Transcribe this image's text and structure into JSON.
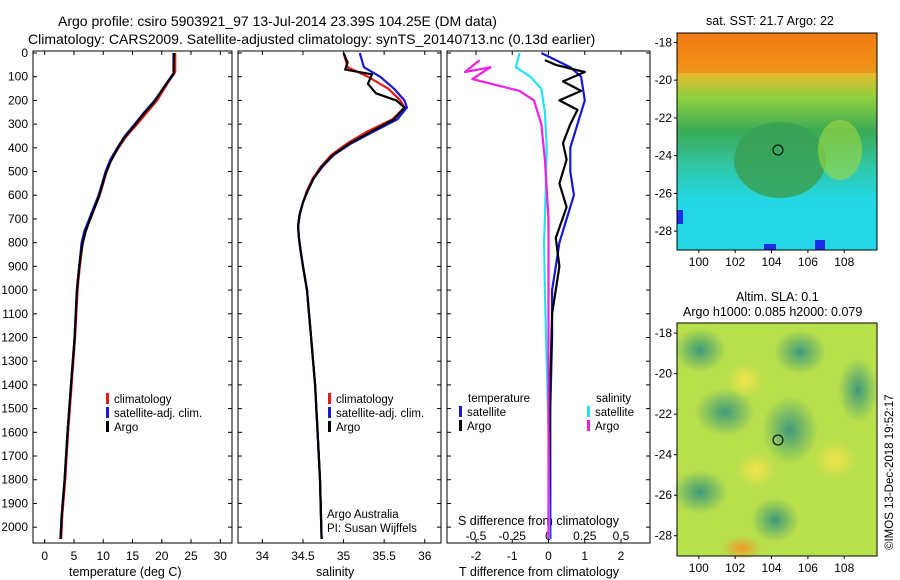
{
  "header": {
    "title_line1": "Argo profile: csiro 5903921_97 13-Jul-2014 23.39S 104.25E (DM data)",
    "title_line2": "Climatology: CARS2009. Satellite-adjusted climatology: synTS_20140713.nc (0.13d earlier)"
  },
  "colors": {
    "climatology": "#e8171a",
    "satellite": "#1717d8",
    "argo": "#000000",
    "sat_salinity": "#22e4f0",
    "argo_salinity_diff": "#f01ee8"
  },
  "depth_axis": {
    "ticks": [
      "0",
      "100",
      "200",
      "300",
      "400",
      "500",
      "600",
      "700",
      "800",
      "900",
      "1000",
      "1100",
      "1200",
      "1300",
      "1400",
      "1500",
      "1600",
      "1700",
      "1800",
      "1900",
      "2000"
    ],
    "ylim": [
      0,
      2050
    ]
  },
  "panels": {
    "temperature": {
      "xlabel": "temperature (deg C)",
      "xticks": [
        "0",
        "5",
        "10",
        "15",
        "20",
        "25",
        "30"
      ],
      "legend": [
        "climatology",
        "satellite-adj. clim.",
        "Argo"
      ]
    },
    "salinity": {
      "xlabel": "salinity",
      "xticks": [
        "34",
        "34.5",
        "35",
        "35.5",
        "36"
      ],
      "legend": [
        "climatology",
        "satellite-adj. clim.",
        "Argo"
      ],
      "credit_line1": "Argo Australia",
      "credit_line2": "PI: Susan Wijffels"
    },
    "difference": {
      "xlabel": "T difference from climatology",
      "xticks": [
        "-2",
        "-1",
        "0",
        "1",
        "2"
      ],
      "top_label": "S difference from climatology",
      "top_ticks": [
        "-0.5",
        "-0.25",
        "0",
        "0.25",
        "0.5"
      ],
      "legend_temperature_title": "temperature",
      "legend_salinity_title": "salinity",
      "legend_temperature": [
        "satellite",
        "Argo"
      ],
      "legend_salinity": [
        "satellite",
        "Argo"
      ]
    }
  },
  "maps": {
    "sst_title": "sat. SST: 21.7 Argo: 22",
    "sla_title_line1": "Altim. SLA: 0.1",
    "sla_title_line2": "Argo h1000: 0.085 h2000: 0.079",
    "lat_ticks": [
      "-18",
      "-20",
      "-22",
      "-24",
      "-26",
      "-28"
    ],
    "lon_ticks": [
      "100",
      "102",
      "104",
      "106",
      "108"
    ],
    "float_position": {
      "lon": 104.25,
      "lat": -23.39
    }
  },
  "footer": {
    "side_text": "©IMOS 13-Dec-2018 19:52:17"
  },
  "chart_data": [
    {
      "type": "line",
      "title": "",
      "xlabel": "temperature (deg C)",
      "ylabel": "",
      "xlim": [
        -2,
        32
      ],
      "ylim": [
        2050,
        0
      ],
      "series": [
        {
          "name": "climatology",
          "points": [
            [
              22.3,
              0
            ],
            [
              22.3,
              80
            ],
            [
              21.2,
              120
            ],
            [
              20.2,
              160
            ],
            [
              19.2,
              200
            ],
            [
              17.5,
              250
            ],
            [
              15.8,
              300
            ],
            [
              14,
              350
            ],
            [
              12.6,
              400
            ],
            [
              11.4,
              450
            ],
            [
              10.6,
              500
            ],
            [
              10,
              550
            ],
            [
              9.4,
              600
            ],
            [
              8.6,
              650
            ],
            [
              7.8,
              700
            ],
            [
              7.0,
              750
            ],
            [
              6.5,
              800
            ],
            [
              6.0,
              900
            ],
            [
              5.6,
              1000
            ],
            [
              5.2,
              1200
            ],
            [
              4.6,
              1400
            ],
            [
              4.0,
              1600
            ],
            [
              3.5,
              1800
            ],
            [
              3.0,
              1950
            ],
            [
              2.8,
              2050
            ]
          ]
        },
        {
          "name": "satellite-adj. clim.",
          "points": [
            [
              22.0,
              0
            ],
            [
              22.0,
              85
            ],
            [
              20.9,
              125
            ],
            [
              19.8,
              165
            ],
            [
              18.8,
              200
            ],
            [
              17.0,
              250
            ],
            [
              15.4,
              300
            ],
            [
              13.7,
              350
            ],
            [
              12.4,
              400
            ],
            [
              11.2,
              450
            ],
            [
              10.4,
              500
            ],
            [
              9.8,
              550
            ],
            [
              9.2,
              600
            ],
            [
              8.4,
              650
            ],
            [
              7.6,
              700
            ],
            [
              6.8,
              750
            ],
            [
              6.3,
              800
            ],
            [
              5.9,
              900
            ],
            [
              5.5,
              1000
            ],
            [
              5.1,
              1200
            ],
            [
              4.5,
              1400
            ],
            [
              3.9,
              1600
            ],
            [
              3.4,
              1800
            ],
            [
              2.9,
              1950
            ],
            [
              2.7,
              2050
            ]
          ]
        },
        {
          "name": "Argo",
          "points": [
            [
              22.1,
              0
            ],
            [
              22.0,
              90
            ],
            [
              20.8,
              130
            ],
            [
              19.7,
              170
            ],
            [
              18.6,
              210
            ],
            [
              16.8,
              260
            ],
            [
              15.2,
              310
            ],
            [
              13.5,
              360
            ],
            [
              12.3,
              410
            ],
            [
              11.2,
              460
            ],
            [
              10.4,
              510
            ],
            [
              9.8,
              560
            ],
            [
              9.2,
              610
            ],
            [
              8.4,
              660
            ],
            [
              7.6,
              710
            ],
            [
              6.9,
              760
            ],
            [
              6.4,
              810
            ],
            [
              5.9,
              900
            ],
            [
              5.5,
              1000
            ],
            [
              5.1,
              1200
            ],
            [
              4.5,
              1400
            ],
            [
              3.9,
              1600
            ],
            [
              3.4,
              1800
            ],
            [
              2.9,
              1950
            ],
            [
              2.7,
              2050
            ]
          ]
        }
      ]
    },
    {
      "type": "line",
      "title": "",
      "xlabel": "salinity",
      "ylabel": "",
      "xlim": [
        33.7,
        36.2
      ],
      "ylim": [
        2050,
        0
      ],
      "series": [
        {
          "name": "climatology",
          "points": [
            [
              35.0,
              0
            ],
            [
              35.05,
              60
            ],
            [
              35.3,
              100
            ],
            [
              35.55,
              150
            ],
            [
              35.7,
              200
            ],
            [
              35.75,
              230
            ],
            [
              35.6,
              280
            ],
            [
              35.3,
              330
            ],
            [
              35.05,
              380
            ],
            [
              34.85,
              430
            ],
            [
              34.72,
              480
            ],
            [
              34.62,
              530
            ],
            [
              34.55,
              580
            ],
            [
              34.5,
              630
            ],
            [
              34.46,
              680
            ],
            [
              34.44,
              730
            ],
            [
              34.45,
              780
            ],
            [
              34.47,
              830
            ],
            [
              34.5,
              900
            ],
            [
              34.55,
              1000
            ],
            [
              34.6,
              1200
            ],
            [
              34.65,
              1400
            ],
            [
              34.68,
              1600
            ],
            [
              34.71,
              1800
            ],
            [
              34.73,
              2050
            ]
          ]
        },
        {
          "name": "satellite-adj. clim.",
          "points": [
            [
              35.2,
              0
            ],
            [
              35.25,
              60
            ],
            [
              35.45,
              100
            ],
            [
              35.62,
              150
            ],
            [
              35.75,
              200
            ],
            [
              35.78,
              230
            ],
            [
              35.66,
              280
            ],
            [
              35.38,
              330
            ],
            [
              35.1,
              380
            ],
            [
              34.88,
              430
            ],
            [
              34.74,
              480
            ],
            [
              34.63,
              530
            ],
            [
              34.56,
              580
            ],
            [
              34.5,
              630
            ],
            [
              34.46,
              680
            ],
            [
              34.44,
              730
            ],
            [
              34.45,
              780
            ],
            [
              34.47,
              830
            ],
            [
              34.5,
              900
            ],
            [
              34.55,
              1000
            ],
            [
              34.6,
              1200
            ],
            [
              34.65,
              1400
            ],
            [
              34.68,
              1600
            ],
            [
              34.71,
              1800
            ],
            [
              34.73,
              2050
            ]
          ]
        },
        {
          "name": "Argo",
          "points": [
            [
              35.0,
              0
            ],
            [
              35.05,
              40
            ],
            [
              35.02,
              70
            ],
            [
              35.35,
              90
            ],
            [
              35.3,
              130
            ],
            [
              35.4,
              170
            ],
            [
              35.65,
              200
            ],
            [
              35.75,
              230
            ],
            [
              35.62,
              280
            ],
            [
              35.35,
              330
            ],
            [
              35.08,
              380
            ],
            [
              34.87,
              430
            ],
            [
              34.73,
              480
            ],
            [
              34.63,
              530
            ],
            [
              34.56,
              580
            ],
            [
              34.5,
              630
            ],
            [
              34.46,
              680
            ],
            [
              34.44,
              730
            ],
            [
              34.45,
              780
            ],
            [
              34.47,
              830
            ],
            [
              34.5,
              900
            ],
            [
              34.55,
              1000
            ],
            [
              34.6,
              1200
            ],
            [
              34.65,
              1400
            ],
            [
              34.68,
              1600
            ],
            [
              34.71,
              1800
            ],
            [
              34.73,
              2050
            ]
          ]
        }
      ]
    },
    {
      "type": "line",
      "title": "",
      "xlabel": "T difference from climatology",
      "ylabel": "",
      "xlim": [
        -2.8,
        2.8
      ],
      "ylim": [
        2050,
        0
      ],
      "series": [
        {
          "name": "temperature satellite",
          "points": [
            [
              -0.2,
              0
            ],
            [
              0.6,
              60
            ],
            [
              0.9,
              100
            ],
            [
              1.0,
              200
            ],
            [
              0.8,
              300
            ],
            [
              0.6,
              400
            ],
            [
              0.6,
              500
            ],
            [
              0.7,
              600
            ],
            [
              0.5,
              700
            ],
            [
              0.3,
              800
            ],
            [
              0.2,
              900
            ],
            [
              0.1,
              1000
            ],
            [
              0.1,
              1200
            ],
            [
              0.05,
              1500
            ],
            [
              0.05,
              1800
            ],
            [
              0.05,
              2050
            ]
          ]
        },
        {
          "name": "temperature Argo",
          "points": [
            [
              -0.1,
              30
            ],
            [
              0.2,
              50
            ],
            [
              1.0,
              80
            ],
            [
              0.4,
              120
            ],
            [
              0.9,
              160
            ],
            [
              0.3,
              200
            ],
            [
              0.8,
              240
            ],
            [
              0.6,
              300
            ],
            [
              0.4,
              380
            ],
            [
              0.5,
              450
            ],
            [
              0.3,
              550
            ],
            [
              0.5,
              650
            ],
            [
              0.2,
              780
            ],
            [
              0.3,
              900
            ],
            [
              0.1,
              1100
            ],
            [
              0.05,
              1400
            ],
            [
              0.02,
              1800
            ],
            [
              0.0,
              2050
            ]
          ]
        },
        {
          "name": "salinity satellite",
          "points": [
            [
              -0.8,
              0
            ],
            [
              -0.9,
              60
            ],
            [
              -0.5,
              100
            ],
            [
              -0.2,
              150
            ],
            [
              -0.1,
              250
            ],
            [
              -0.05,
              400
            ],
            [
              -0.08,
              600
            ],
            [
              -0.12,
              800
            ],
            [
              -0.1,
              1000
            ],
            [
              -0.05,
              1300
            ],
            [
              0.0,
              1600
            ],
            [
              0.02,
              2050
            ]
          ]
        },
        {
          "name": "salinity Argo",
          "points": [
            [
              -1.9,
              30
            ],
            [
              -2.3,
              80
            ],
            [
              -1.6,
              60
            ],
            [
              -2.1,
              110
            ],
            [
              -0.8,
              160
            ],
            [
              -0.4,
              200
            ],
            [
              -0.2,
              300
            ],
            [
              -0.1,
              450
            ],
            [
              0.0,
              700
            ],
            [
              0.0,
              1000
            ],
            [
              0.0,
              1500
            ],
            [
              0.0,
              2050
            ]
          ]
        }
      ]
    }
  ]
}
